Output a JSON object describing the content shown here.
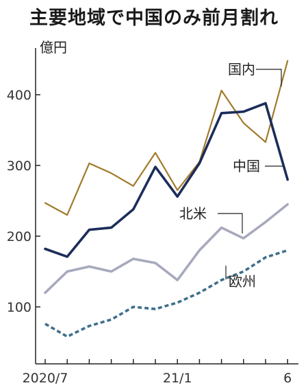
{
  "chart_data": {
    "type": "line",
    "title": "主要地域で中国のみ前月割れ",
    "unit": "億円",
    "categories": [
      "2020/7",
      "2020/8",
      "2020/9",
      "2020/10",
      "2020/11",
      "2020/12",
      "21/1",
      "21/2",
      "21/3",
      "21/4",
      "21/5",
      "21/6"
    ],
    "x_tick_labels": [
      {
        "index": 0,
        "label": "2020/7"
      },
      {
        "index": 6,
        "label": "21/1"
      },
      {
        "index": 11,
        "label": "6"
      }
    ],
    "ylim": [
      0,
      470
    ],
    "y_ticks": [
      100,
      200,
      300,
      400
    ],
    "grid": false,
    "series": [
      {
        "name": "国内",
        "color": "#a07a2a",
        "style": "solid",
        "values": [
          247,
          230,
          303,
          289,
          271,
          318,
          265,
          305,
          406,
          360,
          333,
          448
        ]
      },
      {
        "name": "中国",
        "color": "#1b2d5a",
        "style": "solid",
        "values": [
          182,
          171,
          209,
          212,
          238,
          298,
          256,
          303,
          374,
          376,
          388,
          280
        ]
      },
      {
        "name": "北米",
        "color": "#a7a9bd",
        "style": "solid",
        "values": [
          120,
          150,
          157,
          150,
          168,
          162,
          138,
          180,
          212,
          197,
          220,
          245
        ]
      },
      {
        "name": "欧州",
        "color": "#3f6f8c",
        "style": "dashed",
        "values": [
          76,
          58,
          73,
          82,
          100,
          97,
          106,
          120,
          138,
          150,
          170,
          180
        ]
      }
    ]
  }
}
